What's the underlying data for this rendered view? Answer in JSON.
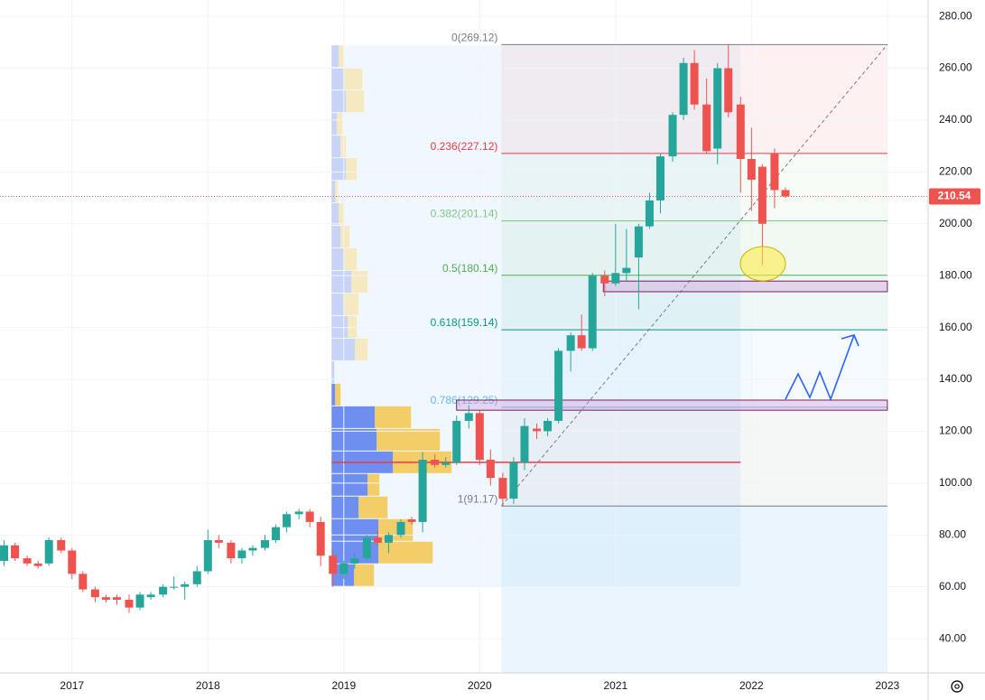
{
  "chart_data": {
    "type": "candlestick",
    "x": [
      2016.5,
      2016.58,
      2016.67,
      2016.75,
      2016.83,
      2016.92,
      2017,
      2017.08,
      2017.17,
      2017.25,
      2017.33,
      2017.42,
      2017.5,
      2017.58,
      2017.67,
      2017.75,
      2017.83,
      2017.92,
      2018,
      2018.08,
      2018.17,
      2018.25,
      2018.33,
      2018.42,
      2018.5,
      2018.58,
      2018.67,
      2018.75,
      2018.83,
      2018.92,
      2019,
      2019.08,
      2019.17,
      2019.25,
      2019.33,
      2019.42,
      2019.5,
      2019.58,
      2019.67,
      2019.75,
      2019.83,
      2019.92,
      2020,
      2020.08,
      2020.17,
      2020.25,
      2020.33,
      2020.42,
      2020.5,
      2020.58,
      2020.67,
      2020.75,
      2020.83,
      2020.92,
      2021,
      2021.08,
      2021.17,
      2021.25,
      2021.33,
      2021.42,
      2021.5,
      2021.58,
      2021.67,
      2021.75,
      2021.83,
      2021.92,
      2022,
      2022.08,
      2022.17,
      2022.25
    ],
    "open": [
      70,
      76,
      71,
      69,
      69,
      78,
      74,
      65,
      59,
      56,
      56,
      55,
      52,
      56,
      57,
      60,
      60,
      61,
      66,
      78,
      77,
      71,
      74,
      75,
      78,
      83,
      88,
      89,
      85,
      72,
      65,
      69,
      71,
      79,
      77,
      80,
      86,
      85,
      109,
      107,
      108,
      124,
      127,
      109,
      102,
      94,
      108,
      121,
      120,
      124,
      151,
      157,
      152,
      180,
      177,
      181,
      187,
      199,
      209,
      226,
      242,
      262,
      246,
      229,
      260,
      246,
      225,
      222,
      227,
      213
    ],
    "high": [
      78,
      77,
      72,
      70,
      79,
      79,
      75,
      66,
      60,
      57,
      57,
      57,
      58,
      58,
      61,
      64,
      62,
      68,
      82,
      80,
      78,
      75,
      76,
      80,
      84,
      89,
      90,
      90,
      87,
      74,
      70,
      73,
      80,
      82,
      81,
      86,
      87,
      112,
      111,
      110,
      126,
      130,
      128,
      113,
      104,
      110,
      125,
      123,
      125,
      152,
      158,
      165,
      181,
      182,
      200,
      198,
      200,
      212,
      227,
      243,
      264,
      267,
      256,
      262,
      269.12,
      249,
      237,
      223,
      229,
      214
    ],
    "low": [
      68,
      70,
      68,
      67,
      68,
      73,
      63,
      58,
      54,
      54,
      53,
      50,
      51,
      55,
      56,
      59,
      55,
      60,
      65,
      75,
      69,
      69,
      72,
      74,
      77,
      81,
      86,
      83,
      68,
      60,
      63,
      67,
      70,
      76,
      73,
      79,
      84,
      81,
      106,
      106,
      107,
      121,
      107,
      99,
      91.17,
      92,
      105,
      117,
      118,
      123,
      143,
      151,
      151,
      172,
      176,
      178,
      167,
      198,
      204,
      224,
      240,
      244,
      227,
      223,
      241,
      212,
      205,
      184,
      206,
      210
    ],
    "close": [
      76,
      71,
      69,
      68,
      78,
      74,
      65,
      59,
      56,
      55,
      55,
      52,
      57,
      57,
      60,
      60,
      61,
      66,
      78,
      77,
      71,
      74,
      75,
      78,
      83,
      88,
      89,
      85,
      72,
      65,
      69,
      71,
      79,
      77,
      80,
      85,
      85,
      109,
      107,
      108,
      124,
      127,
      109,
      102,
      94,
      108,
      122,
      120,
      124,
      151,
      157,
      152,
      180,
      177,
      181,
      183,
      199,
      209,
      226,
      242,
      262,
      246,
      228,
      260,
      243,
      225,
      217,
      200,
      213,
      210.54
    ],
    "up_color": "#26a69a",
    "down_color": "#ef5350",
    "xlim": [
      2016.47,
      2023.3
    ],
    "ylim": [
      26.8,
      286.3
    ],
    "xticks": [
      2017,
      2018,
      2019,
      2020,
      2021,
      2022,
      2023
    ],
    "yticks": [
      40,
      60,
      80,
      100,
      120,
      140,
      160,
      180,
      200,
      220,
      240,
      260,
      280
    ],
    "yticks_format": 2,
    "grid": true,
    "fib": {
      "start_x": 2020.16,
      "end_x": 2023.0,
      "levels": [
        {
          "value": 269.12,
          "label": "0(269.12)",
          "color": "#787b86"
        },
        {
          "value": 227.12,
          "label": "0.236(227.12)",
          "color": "#f23645"
        },
        {
          "value": 201.14,
          "label": "0.382(201.14)",
          "color": "#81c784"
        },
        {
          "value": 180.14,
          "label": "0.5(180.14)",
          "color": "#4caf50"
        },
        {
          "value": 159.14,
          "label": "0.618(159.14)",
          "color": "#089981"
        },
        {
          "value": 129.25,
          "label": "0.786(129.25)",
          "color": "#64b5f6"
        },
        {
          "value": 91.17,
          "label": "1(91.17)",
          "color": "#787b86"
        }
      ]
    },
    "profile": {
      "x_start": 2018.91,
      "x_end": 2021.92,
      "bins": [
        60,
        68.7,
        77.4,
        86.1,
        94.8,
        103.5,
        112.2,
        120.9,
        129.6,
        138.3,
        147,
        155.7,
        164.4,
        173.1,
        181.8,
        190.5,
        199.2,
        207.9,
        216.6,
        225.3,
        234,
        242.7,
        251.4,
        260.1,
        268.8
      ],
      "up": [
        25,
        52,
        52,
        30,
        40,
        68,
        50,
        48,
        4,
        3,
        26,
        18,
        14,
        22,
        14,
        10,
        8,
        4,
        16,
        10,
        6,
        16,
        14,
        8
      ],
      "down": [
        22,
        60,
        38,
        32,
        13,
        65,
        70,
        40,
        6,
        0,
        14,
        10,
        16,
        18,
        14,
        10,
        6,
        3,
        12,
        6,
        6,
        20,
        20,
        6
      ],
      "value_area": [
        60,
        138.3
      ],
      "poc": 108
    },
    "zones": [
      {
        "low": 173.8,
        "high": 177.9,
        "x_start": 2020.91,
        "x_end": 2023.0
      },
      {
        "low": 128.1,
        "high": 132.0,
        "x_start": 2019.83,
        "x_end": 2023.0
      }
    ]
  }
}
